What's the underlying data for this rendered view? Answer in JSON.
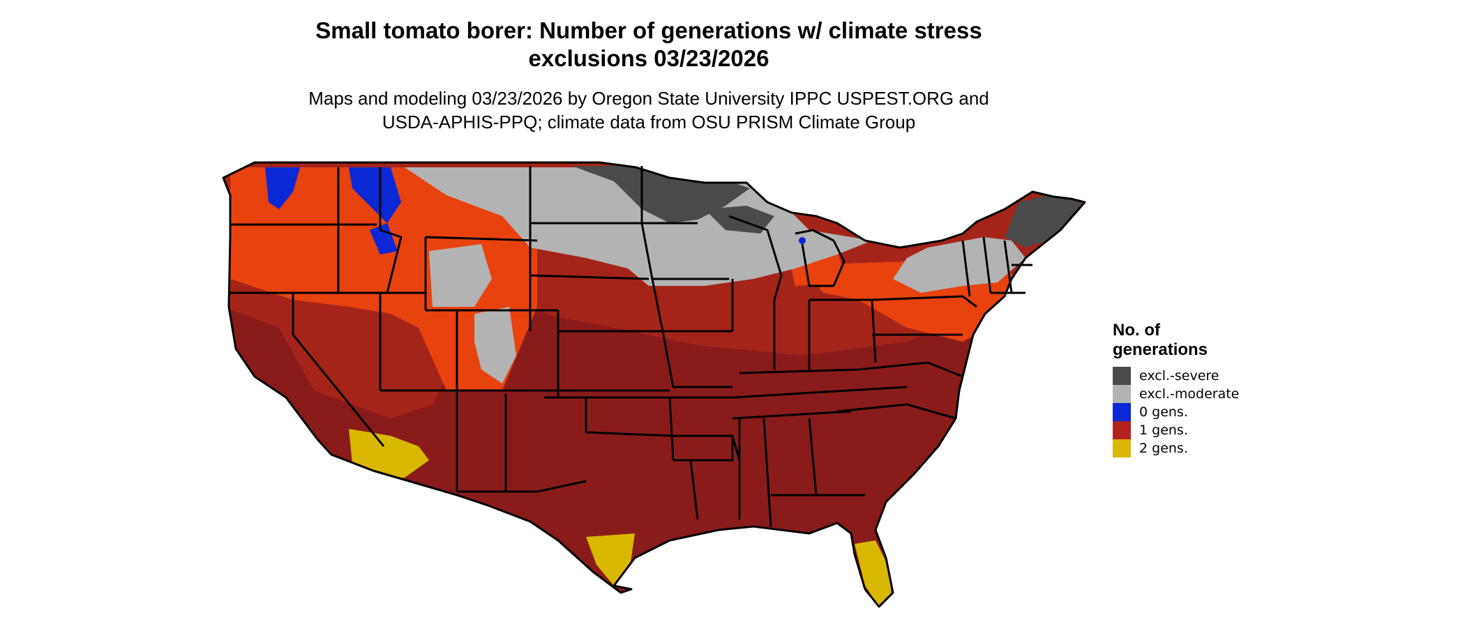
{
  "title_line1": "Small tomato borer: Number of generations w/ climate stress",
  "title_line2": "exclusions 03/23/2026",
  "subtitle_line1": "Maps and modeling 03/23/2026 by Oregon State University IPPC USPEST.ORG and",
  "subtitle_line2": "USDA-APHIS-PPQ; climate data from OSU PRISM Climate Group",
  "legend": {
    "title_line1": "No. of",
    "title_line2": "generations",
    "items": [
      {
        "label": "excl.-severe",
        "color": "#4a4a4a"
      },
      {
        "label": "excl.-moderate",
        "color": "#b3b3b3"
      },
      {
        "label": "0 gens.",
        "color": "#0a28d6"
      },
      {
        "label": "1 gens.",
        "color": "#b2221f"
      },
      {
        "label": "2 gens.",
        "color": "#d8b800"
      }
    ]
  },
  "colors": {
    "one_gen_dark": "#8a1b1b",
    "one_gen_mid": "#a52419",
    "one_gen_bright": "#e8420f",
    "excl_moderate": "#b3b3b3",
    "excl_severe": "#4a4a4a",
    "zero_gen": "#0a28d6",
    "two_gen": "#d8b800",
    "borders": "#000000"
  }
}
